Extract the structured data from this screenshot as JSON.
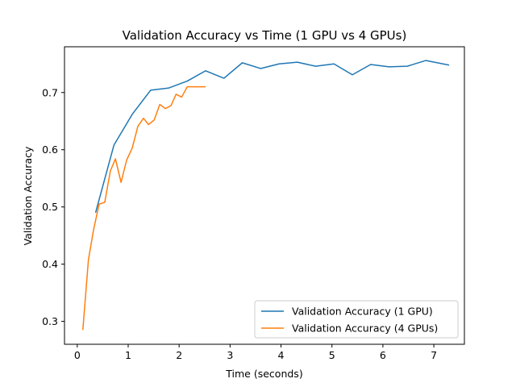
{
  "chart_data": {
    "type": "line",
    "title": "Validation Accuracy vs Time (1 GPU vs 4 GPUs)",
    "xlabel": "Time (seconds)",
    "ylabel": "Validation Accuracy",
    "xlim": [
      -0.25,
      7.6
    ],
    "ylim": [
      0.26,
      0.78
    ],
    "xticks": [
      0,
      1,
      2,
      3,
      4,
      5,
      6,
      7
    ],
    "yticks": [
      0.3,
      0.4,
      0.5,
      0.6,
      0.7
    ],
    "xtick_labels": [
      "0",
      "1",
      "2",
      "3",
      "4",
      "5",
      "6",
      "7"
    ],
    "ytick_labels": [
      "0.3",
      "0.4",
      "0.5",
      "0.6",
      "0.7"
    ],
    "grid": false,
    "legend_position": "lower-right",
    "series": [
      {
        "name": "Validation Accuracy (1 GPU)",
        "color": "#1f77b4",
        "x": [
          0.36,
          0.72,
          1.08,
          1.44,
          1.8,
          2.16,
          2.52,
          2.88,
          3.24,
          3.6,
          3.96,
          4.32,
          4.68,
          5.04,
          5.4,
          5.76,
          6.12,
          6.48,
          6.84,
          7.3
        ],
        "y": [
          0.49,
          0.608,
          0.662,
          0.704,
          0.708,
          0.72,
          0.738,
          0.725,
          0.752,
          0.742,
          0.75,
          0.753,
          0.746,
          0.75,
          0.731,
          0.749,
          0.745,
          0.746,
          0.756,
          0.748
        ]
      },
      {
        "name": "Validation Accuracy (4 GPUs)",
        "color": "#ff7f0e",
        "x": [
          0.11,
          0.22,
          0.32,
          0.43,
          0.54,
          0.65,
          0.75,
          0.86,
          0.97,
          1.08,
          1.19,
          1.3,
          1.4,
          1.51,
          1.62,
          1.73,
          1.84,
          1.94,
          2.05,
          2.16,
          2.27,
          2.38,
          2.52
        ],
        "y": [
          0.285,
          0.408,
          0.46,
          0.505,
          0.508,
          0.563,
          0.584,
          0.543,
          0.582,
          0.603,
          0.641,
          0.655,
          0.644,
          0.652,
          0.679,
          0.672,
          0.677,
          0.697,
          0.692,
          0.71,
          0.71,
          0.71,
          0.71
        ]
      }
    ]
  }
}
